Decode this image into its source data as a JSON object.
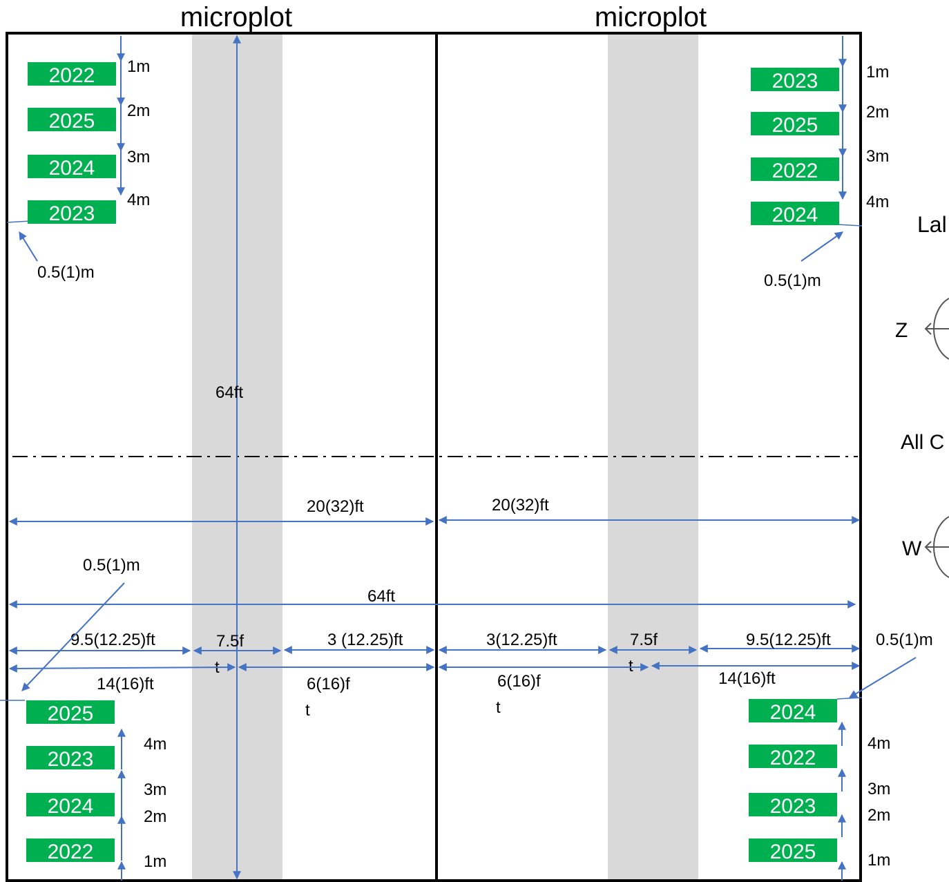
{
  "titles": {
    "left": "microplot",
    "right": "microplot"
  },
  "labels": {
    "vertical_length": "64ft",
    "half_width_left": "20(32)ft",
    "half_width_right": "20(32)ft",
    "total_width": "64ft",
    "offset_top_left": "0.5(1)m",
    "offset_top_right": "0.5(1)m",
    "offset_bottom_left": "0.5(1)m",
    "offset_bottom_right": "0.5(1)m",
    "row1_a": "9.5(12.25)ft",
    "row1_b_1": "7.5f",
    "row1_b_2": "t",
    "row1_c": "3 (12.25)ft",
    "row1_d": "3(12.25)ft",
    "row1_e_1": "7.5f",
    "row1_e_2": "t",
    "row1_f": "9.5(12.25)ft",
    "row2_a": "14(16)ft",
    "row2_b_1": "6(16)f",
    "row2_b_2": "t",
    "row2_c_1": "6(16)f",
    "row2_c_2": "t",
    "row2_d": "14(16)ft"
  },
  "top_left_tags": [
    "2022",
    "2025",
    "2024",
    "2023"
  ],
  "top_right_tags": [
    "2023",
    "2025",
    "2022",
    "2024"
  ],
  "bottom_left_tags": [
    "2025",
    "2023",
    "2024",
    "2022"
  ],
  "bottom_right_tags": [
    "2024",
    "2022",
    "2023",
    "2025"
  ],
  "top_left_dist": [
    "1m",
    "2m",
    "3m",
    "4m"
  ],
  "top_right_dist": [
    "1m",
    "2m",
    "3m",
    "4m"
  ],
  "bottom_left_dist": [
    "4m",
    "3m",
    "2m",
    "1m"
  ],
  "bottom_right_dist": [
    "4m",
    "3m",
    "2m",
    "1m"
  ],
  "side_panel": {
    "label_a": "Lal",
    "label_b": "All C",
    "compass_a": "Z",
    "compass_b": "W"
  },
  "colors": {
    "tag_green": "#00b050",
    "arrow_blue": "#4472c4",
    "strip_gray": "#d9d9d9",
    "border": "#000000"
  }
}
